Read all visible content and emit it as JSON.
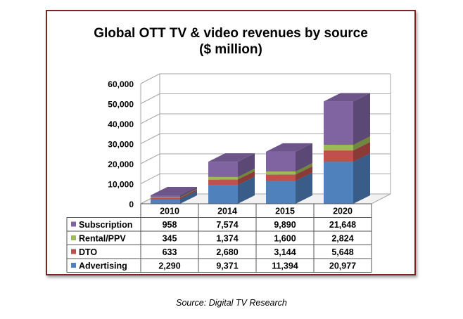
{
  "chart_data": {
    "type": "bar",
    "stacked": true,
    "three_d": true,
    "title_line1": "Global OTT TV & video revenues by source",
    "title_line2": "($ million)",
    "categories": [
      "2010",
      "2014",
      "2015",
      "2020"
    ],
    "series": [
      {
        "name": "Advertising",
        "color": "#4f81bd",
        "values": [
          2290,
          9371,
          11394,
          20977
        ],
        "labels": [
          "2,290",
          "9,371",
          "11,394",
          "20,977"
        ]
      },
      {
        "name": "DTO",
        "color": "#c0504d",
        "values": [
          633,
          2680,
          3144,
          5648
        ],
        "labels": [
          "633",
          "2,680",
          "3,144",
          "5,648"
        ]
      },
      {
        "name": "Rental/PPV",
        "color": "#9bbb59",
        "values": [
          345,
          1374,
          1600,
          2824
        ],
        "labels": [
          "345",
          "1,374",
          "1,600",
          "2,824"
        ]
      },
      {
        "name": "Subscription",
        "color": "#8064a2",
        "values": [
          958,
          7574,
          9890,
          21648
        ],
        "labels": [
          "958",
          "7,574",
          "9,890",
          "21,648"
        ]
      }
    ],
    "table_order": [
      "Subscription",
      "Rental/PPV",
      "DTO",
      "Advertising"
    ],
    "ylim": [
      0,
      60000
    ],
    "y_ticks": [
      0,
      10000,
      20000,
      30000,
      40000,
      50000,
      60000
    ],
    "y_tick_labels": [
      "0",
      "10,000",
      "20,000",
      "30,000",
      "40,000",
      "50,000",
      "60,000"
    ],
    "grid": true,
    "data_table": true,
    "xlabel": "",
    "ylabel": ""
  },
  "source_note": "Source: Digital TV Research"
}
